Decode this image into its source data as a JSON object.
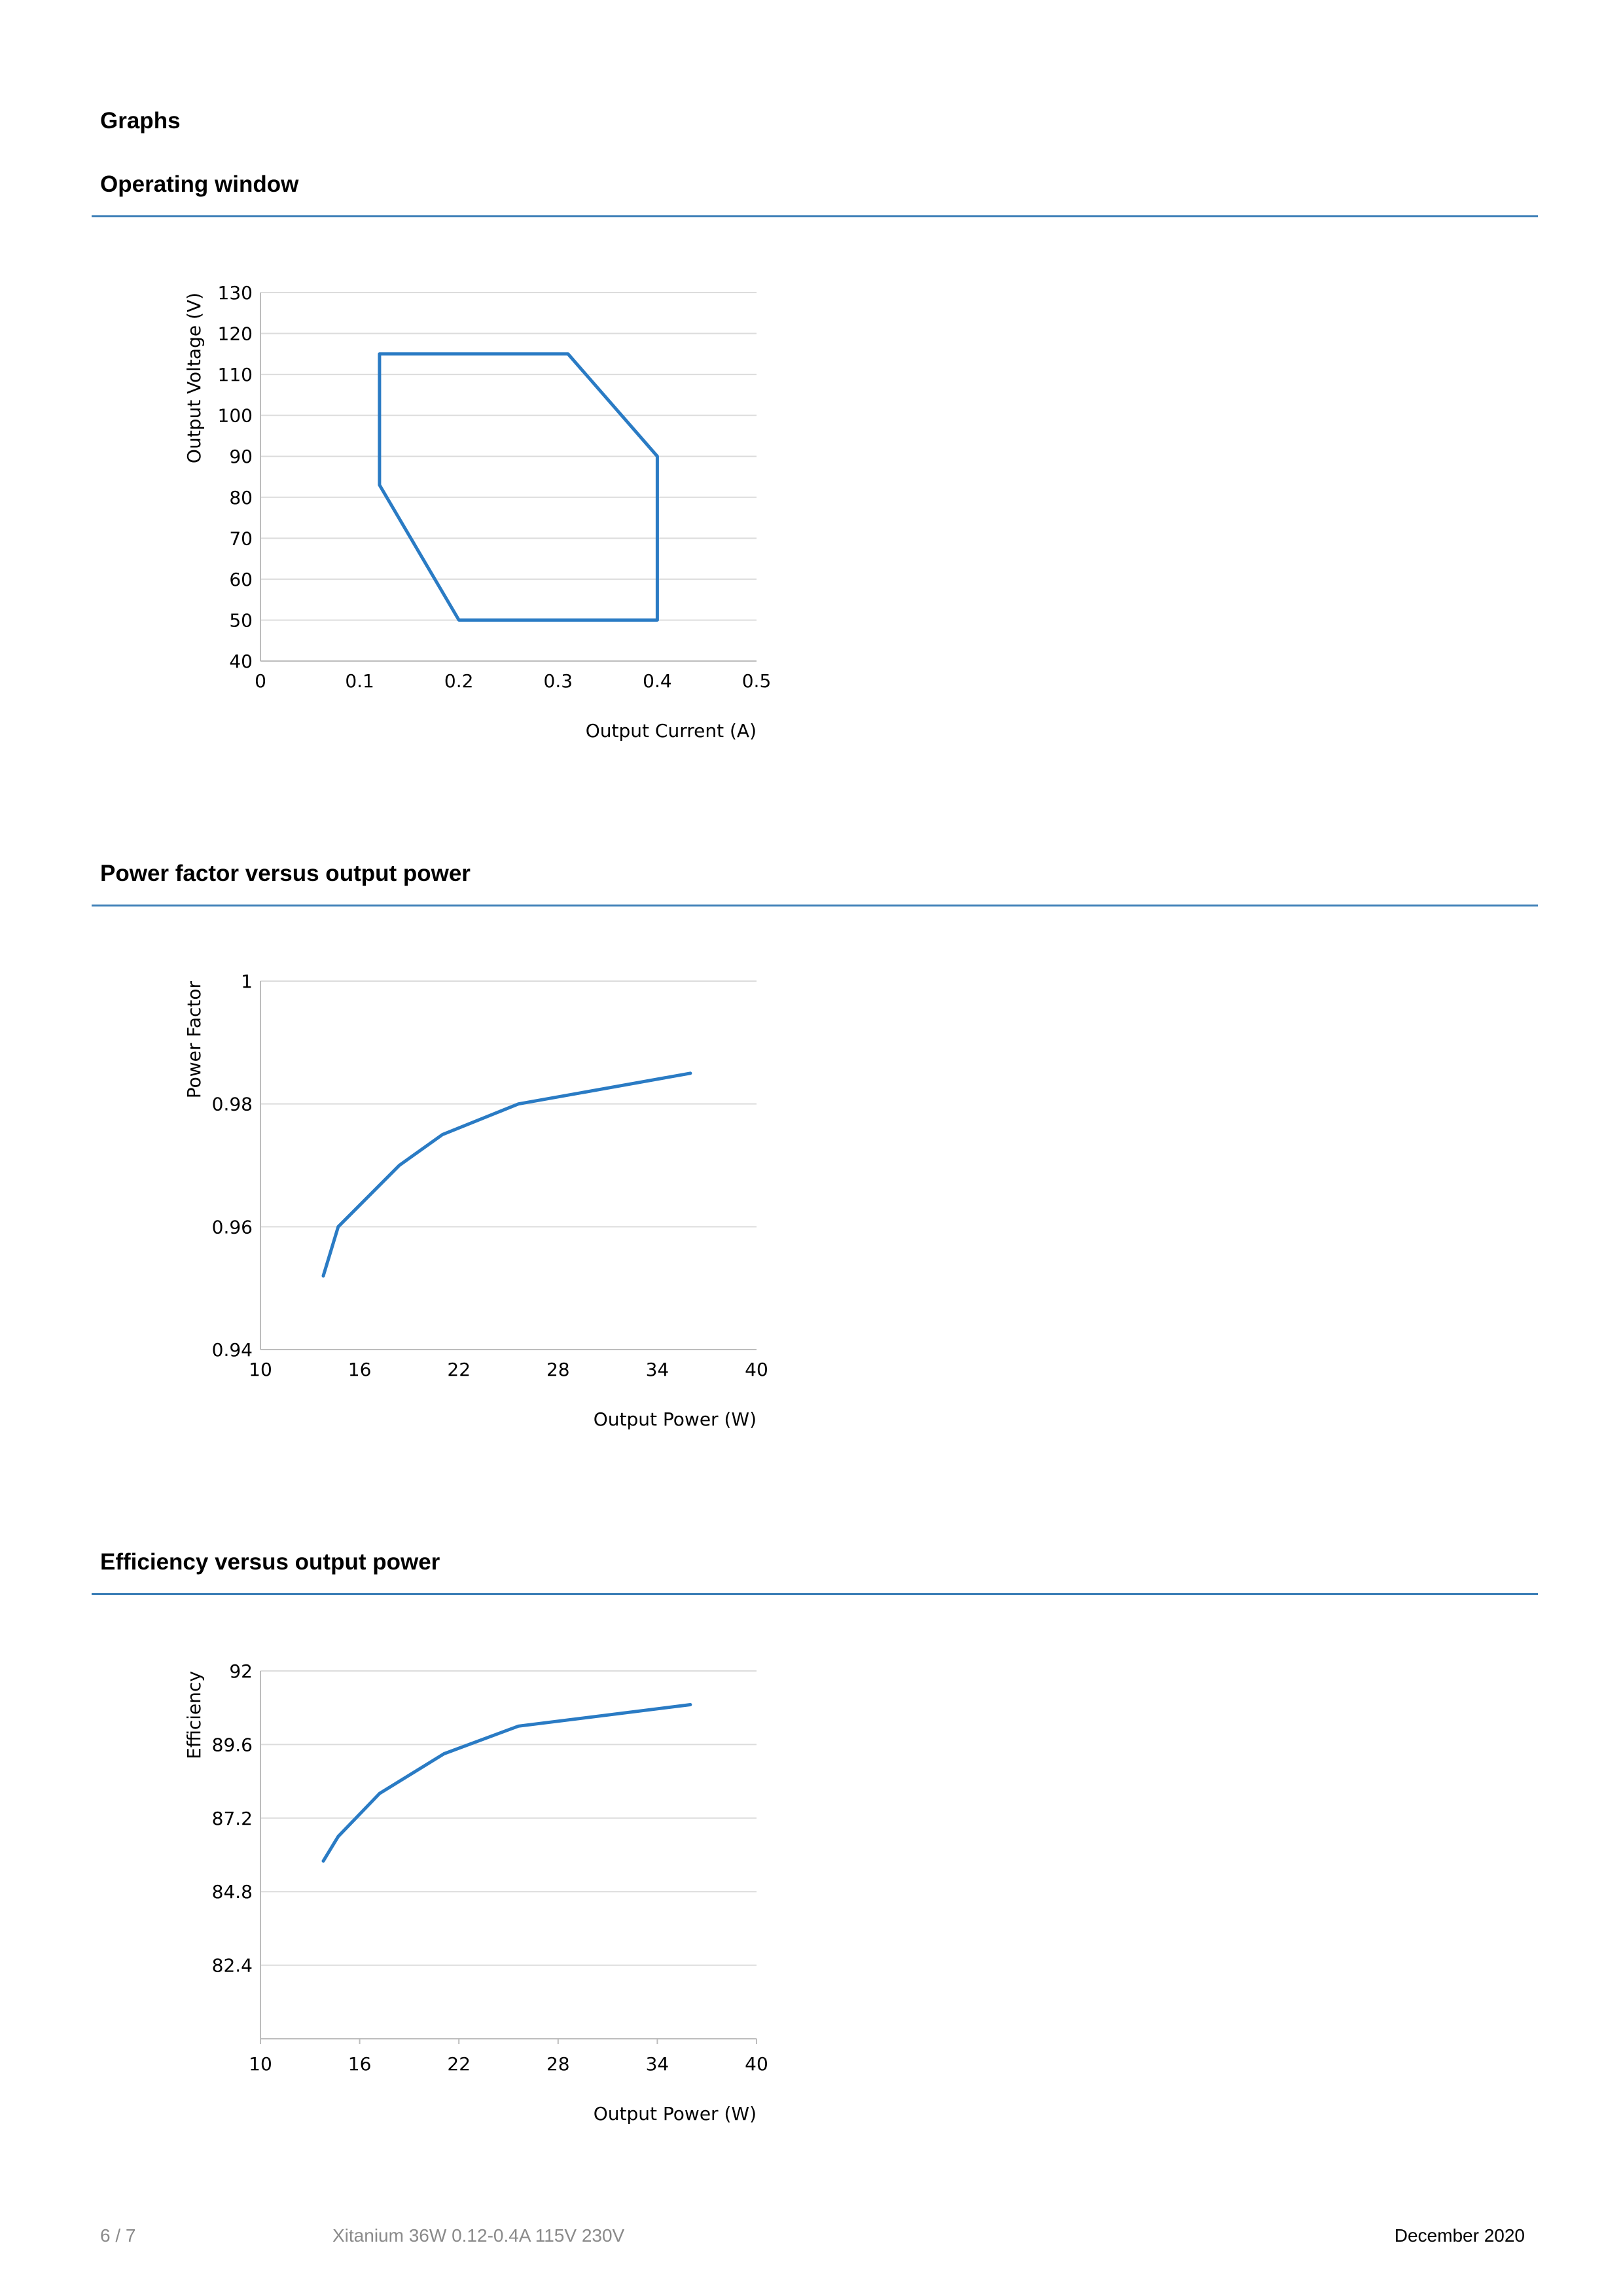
{
  "page": {
    "heading": "Graphs"
  },
  "sections": [
    {
      "title": "Operating window"
    },
    {
      "title": "Power factor versus output power"
    },
    {
      "title": "Efficiency versus output power"
    }
  ],
  "chart_data": [
    {
      "type": "line",
      "title": "",
      "xlabel": "Output Current (A)",
      "ylabel": "Output Voltage (V)",
      "xlim": [
        0,
        0.5
      ],
      "ylim": [
        40,
        130
      ],
      "xticks": [
        0,
        0.1,
        0.2,
        0.3,
        0.4,
        0.5
      ],
      "xtick_labels": [
        "0",
        "0.1",
        "0.2",
        "0.3",
        "0.4",
        "0.5"
      ],
      "yticks": [
        40,
        50,
        60,
        70,
        80,
        90,
        100,
        110,
        120,
        130
      ],
      "ytick_labels": [
        "40",
        "50",
        "60",
        "70",
        "80",
        "90",
        "100",
        "110",
        "120",
        "130"
      ],
      "grid": "horizontal",
      "series": [
        {
          "x": [
            0.12,
            0.31,
            0.4,
            0.4,
            0.2,
            0.12,
            0.12
          ],
          "y": [
            115,
            115,
            90,
            50,
            50,
            83,
            115
          ]
        }
      ],
      "color": "#2a7bc4"
    },
    {
      "type": "line",
      "title": "",
      "xlabel": "Output Power (W)",
      "ylabel": "Power Factor",
      "xlim": [
        10,
        40
      ],
      "ylim": [
        0.94,
        1
      ],
      "xticks": [
        10,
        16,
        22,
        28,
        34,
        40
      ],
      "xtick_labels": [
        "10",
        "16",
        "22",
        "28",
        "34",
        "40"
      ],
      "yticks": [
        0.94,
        0.96,
        0.98,
        1
      ],
      "ytick_labels": [
        "0.94",
        "0.96",
        "0.98",
        "1"
      ],
      "grid": "horizontal",
      "series": [
        {
          "x": [
            13.8,
            14.7,
            18.4,
            21,
            25.6,
            36
          ],
          "y": [
            0.952,
            0.96,
            0.97,
            0.975,
            0.98,
            0.985
          ]
        }
      ],
      "color": "#2a7bc4"
    },
    {
      "type": "line",
      "title": "",
      "xlabel": "Output Power (W)",
      "ylabel": "Efficiency",
      "xlim": [
        10,
        40
      ],
      "ylim": [
        80,
        92
      ],
      "xticks": [
        10,
        16,
        22,
        28,
        34,
        40
      ],
      "xtick_labels": [
        "10",
        "16",
        "22",
        "28",
        "34",
        "40"
      ],
      "yticks": [
        82.4,
        84.8,
        87.2,
        89.6,
        92
      ],
      "ytick_labels": [
        "82.4",
        "84.8",
        "87.2",
        "89.6",
        "92"
      ],
      "grid": "horizontal",
      "series": [
        {
          "x": [
            13.8,
            14.7,
            17.2,
            21.1,
            25.6,
            36
          ],
          "y": [
            85.8,
            86.6,
            88,
            89.3,
            90.2,
            90.9
          ]
        }
      ],
      "color": "#2a7bc4"
    }
  ],
  "footer": {
    "page_number": "6 / 7",
    "product": "Xitanium 36W 0.12-0.4A 115V 230V",
    "date": "December 2020"
  }
}
